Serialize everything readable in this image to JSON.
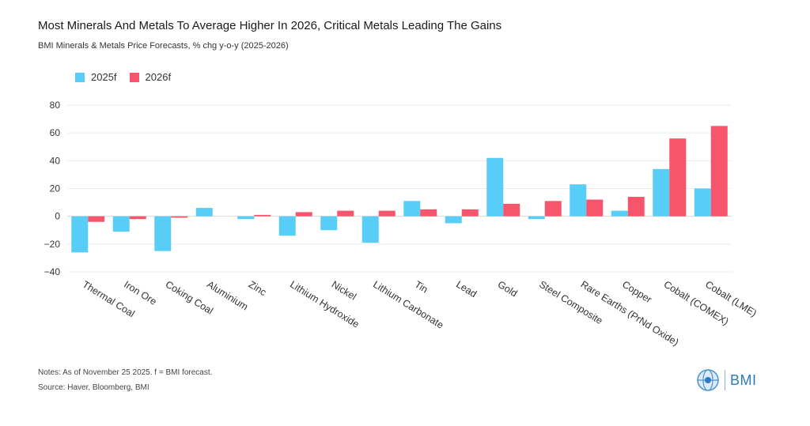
{
  "header": {
    "title": "Most Minerals And Metals To Average Higher In 2026, Critical Metals Leading The Gains",
    "subtitle": "BMI Minerals & Metals Price Forecasts, % chg y-o-y (2025-2026)"
  },
  "footer": {
    "notes": "Notes: As of November 25 2025. f = BMI forecast.",
    "source": "Source: Haver, Bloomberg, BMI",
    "logo_text": "BMI"
  },
  "colors": {
    "series_2025": "#57cdf7",
    "series_2026": "#f7556b",
    "logo": "#2a7bbf"
  },
  "chart_data": {
    "type": "bar",
    "categories": [
      "Thermal Coal",
      "Iron Ore",
      "Coking Coal",
      "Aluminium",
      "Zinc",
      "Lithium Hydroxide",
      "Nickel",
      "Lithium Carbonate",
      "Tin",
      "Lead",
      "Gold",
      "Steel Composite",
      "Rare Earths (PrNd Oxide)",
      "Copper",
      "Cobalt (COMEX)",
      "Cobalt (LME)"
    ],
    "series": [
      {
        "name": "2025f",
        "color": "#57cdf7",
        "values": [
          -26,
          -11,
          -25,
          6,
          -2,
          -14,
          -10,
          -19,
          11,
          -5,
          42,
          -2,
          23,
          4,
          34,
          20
        ]
      },
      {
        "name": "2026f",
        "color": "#f7556b",
        "values": [
          -4,
          -2,
          -1,
          0,
          1,
          3,
          4,
          4,
          5,
          5,
          9,
          11,
          12,
          14,
          56,
          65
        ]
      }
    ],
    "ylim": [
      -40,
      80
    ],
    "yticks": [
      -40,
      -20,
      0,
      20,
      40,
      60,
      80
    ],
    "ytick_labels": [
      "−40",
      "−20",
      "0",
      "20",
      "40",
      "60",
      "80"
    ],
    "grid": true,
    "legend": "top-left",
    "xlabel": "",
    "ylabel": ""
  }
}
